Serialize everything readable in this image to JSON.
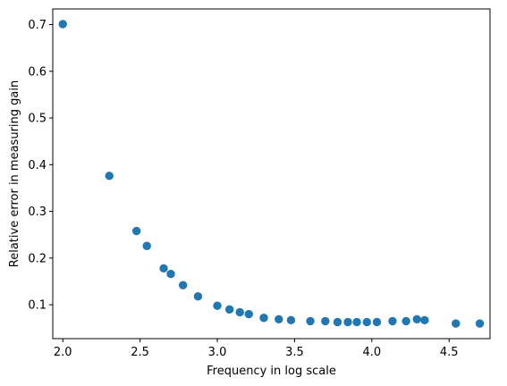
{
  "chart_data": {
    "type": "scatter",
    "title": "",
    "xlabel": "Frequency in log scale",
    "ylabel": "Relative error in measuring gain",
    "xlim": [
      1.935,
      4.765
    ],
    "ylim": [
      0.0275,
      0.7335
    ],
    "xticks": [
      2.0,
      2.5,
      3.0,
      3.5,
      4.0,
      4.5
    ],
    "xtick_labels": [
      "2.0",
      "2.5",
      "3.0",
      "3.5",
      "4.0",
      "4.5"
    ],
    "yticks": [
      0.1,
      0.2,
      0.3,
      0.4,
      0.5,
      0.6,
      0.7
    ],
    "ytick_labels": [
      "0.1",
      "0.2",
      "0.3",
      "0.4",
      "0.5",
      "0.6",
      "0.7"
    ],
    "grid": false,
    "marker_color": "#1f77b4",
    "series": [
      {
        "x": [
          2.0,
          2.301,
          2.477,
          2.544,
          2.653,
          2.699,
          2.778,
          2.875,
          3.0,
          3.079,
          3.146,
          3.204,
          3.301,
          3.398,
          3.477,
          3.602,
          3.699,
          3.778,
          3.845,
          3.903,
          3.968,
          4.033,
          4.134,
          4.222,
          4.292,
          4.342,
          4.544,
          4.699
        ],
        "y": [
          0.701,
          0.376,
          0.258,
          0.226,
          0.178,
          0.166,
          0.142,
          0.118,
          0.098,
          0.09,
          0.084,
          0.08,
          0.072,
          0.069,
          0.067,
          0.065,
          0.065,
          0.063,
          0.063,
          0.063,
          0.063,
          0.063,
          0.065,
          0.065,
          0.069,
          0.067,
          0.06,
          0.06
        ]
      }
    ]
  }
}
